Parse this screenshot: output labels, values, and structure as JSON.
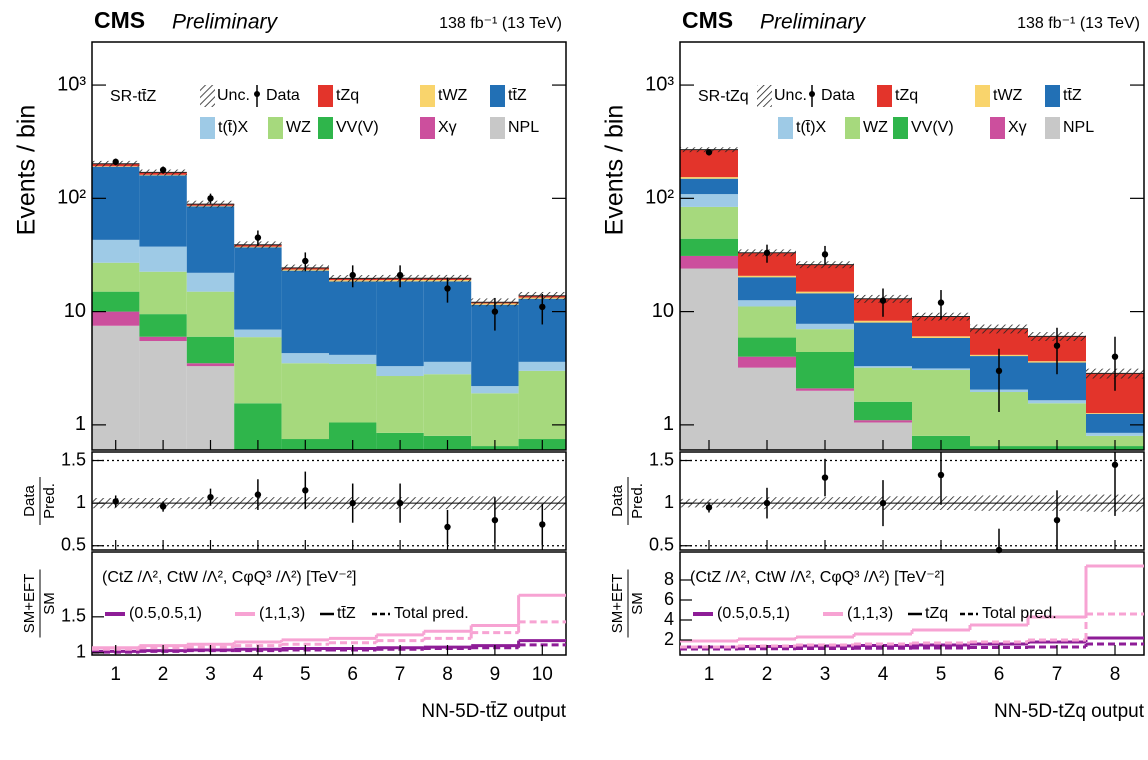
{
  "chart_data": [
    {
      "type": "bar",
      "stacked": true,
      "log_scale": true,
      "title": "CMS",
      "subtitle": "Preliminary",
      "lumi": "138 fb⁻¹ (13 TeV)",
      "region": "SR-tt̄Z",
      "ylabel": "Events / bin",
      "xlabel": "NN-5D-tt̄Z output",
      "categories": [
        "1",
        "2",
        "3",
        "4",
        "5",
        "6",
        "7",
        "8",
        "9",
        "10"
      ],
      "ylim": [
        0.6,
        2400
      ],
      "yticks": [
        1,
        10,
        {
          "value": 100,
          "label": "10²"
        },
        {
          "value": 1000,
          "label": "10³"
        }
      ],
      "uncertainty_name": "Unc.",
      "uncertainty": [
        0.06,
        0.06,
        0.07,
        0.07,
        0.07,
        0.07,
        0.07,
        0.07,
        0.08,
        0.08
      ],
      "data": {
        "name": "Data",
        "values": [
          210,
          178,
          100,
          45,
          28,
          21,
          21,
          16,
          10,
          11
        ],
        "errors": [
          14,
          13,
          10,
          7,
          5.3,
          4.6,
          4.6,
          4,
          3.2,
          3.3
        ]
      },
      "series": [
        {
          "name": "tZq",
          "color": "#e3342b",
          "values": [
            10,
            8,
            3,
            1.5,
            0.8,
            0.7,
            0.7,
            0.7,
            0.3,
            0.5
          ]
        },
        {
          "name": "tWZ",
          "color": "#f9d46c",
          "values": [
            2,
            2,
            1,
            0.5,
            0.5,
            0.5,
            0.5,
            0.5,
            0.3,
            0.3
          ]
        },
        {
          "name": "tt̄Z",
          "color": "#2270b5",
          "values": [
            147,
            122,
            63,
            30,
            18.7,
            14.3,
            15.2,
            14.9,
            9.3,
            9.4
          ]
        },
        {
          "name": "t(t̄)X",
          "color": "#9ecae6",
          "values": [
            16,
            15,
            7,
            1,
            0.8,
            0.7,
            0.6,
            0.8,
            0.3,
            0.6
          ]
        },
        {
          "name": "WZ",
          "color": "#a6d97d",
          "values": [
            12,
            13,
            9,
            4.4,
            2.75,
            2.4,
            1.85,
            2,
            1.25,
            2.25
          ]
        },
        {
          "name": "VV(V)",
          "color": "#2fb54b",
          "values": [
            5,
            3.5,
            2.5,
            1,
            0.2,
            0.5,
            0.3,
            0.25,
            0.1,
            0.2
          ]
        },
        {
          "name": "Xγ",
          "color": "#cc4f9d",
          "values": [
            2.5,
            0.5,
            0.2,
            0.05,
            0.05,
            0.05,
            0.05,
            0.05,
            0.05,
            0.05
          ]
        },
        {
          "name": "NPL",
          "color": "#c8c8c8",
          "values": [
            7.5,
            5.5,
            3.3,
            0.5,
            0.5,
            0.5,
            0.5,
            0.5,
            0.5,
            0.5
          ]
        }
      ],
      "ratio": {
        "ylabel_num": "Data",
        "ylabel_den": "Pred.",
        "ylim": [
          0.45,
          1.6
        ],
        "yticks": [
          0.5,
          1,
          1.5
        ],
        "values": [
          1.02,
          0.96,
          1.07,
          1.1,
          1.15,
          1.0,
          1.0,
          0.72,
          0.8,
          0.75
        ],
        "errors": [
          0.07,
          0.06,
          0.1,
          0.18,
          0.22,
          0.23,
          0.23,
          0.2,
          0.27,
          0.24
        ]
      },
      "eft": {
        "ylabel_num": "SM+EFT",
        "ylabel_den": "SM",
        "header": "(CtZ /Λ², CtW /Λ², CφQ³ /Λ²) [TeV⁻²]",
        "ylim": [
          0.97,
          2.4
        ],
        "yticks": [
          1,
          1.5
        ],
        "signal_name": "tt̄Z",
        "total_name": "Total pred.",
        "series": [
          {
            "name": "(0.5,0.5,1)",
            "color": "#8e1d97",
            "values": [
              1.02,
              1.03,
              1.04,
              1.05,
              1.06,
              1.06,
              1.07,
              1.08,
              1.1,
              1.17
            ],
            "total_values": [
              1.01,
              1.02,
              1.03,
              1.03,
              1.04,
              1.04,
              1.05,
              1.06,
              1.07,
              1.11
            ]
          },
          {
            "name": "(1,1,3)",
            "color": "#f7a3d3",
            "values": [
              1.07,
              1.1,
              1.12,
              1.15,
              1.18,
              1.2,
              1.25,
              1.3,
              1.38,
              1.8
            ],
            "total_values": [
              1.05,
              1.07,
              1.08,
              1.1,
              1.12,
              1.14,
              1.17,
              1.2,
              1.28,
              1.43
            ]
          }
        ]
      }
    },
    {
      "type": "bar",
      "stacked": true,
      "log_scale": true,
      "title": "CMS",
      "subtitle": "Preliminary",
      "lumi": "138 fb⁻¹ (13 TeV)",
      "region": "SR-tZq",
      "ylabel": "Events / bin",
      "xlabel": "NN-5D-tZq output",
      "categories": [
        "1",
        "2",
        "3",
        "4",
        "5",
        "6",
        "7",
        "8"
      ],
      "ylim": [
        0.6,
        2400
      ],
      "yticks": [
        1,
        10,
        {
          "value": 100,
          "label": "10²"
        },
        {
          "value": 1000,
          "label": "10³"
        }
      ],
      "uncertainty_name": "Unc.",
      "uncertainty": [
        0.05,
        0.07,
        0.07,
        0.08,
        0.08,
        0.09,
        0.09,
        0.1
      ],
      "data": {
        "name": "Data",
        "values": [
          255,
          33,
          32,
          12.5,
          12,
          3,
          5,
          4
        ],
        "errors": [
          16,
          6,
          6,
          3.5,
          3.5,
          1.7,
          2.2,
          2
        ]
      },
      "series": [
        {
          "name": "tZq",
          "color": "#e3342b",
          "values": [
            115,
            12.4,
            11,
            4.7,
            3.0,
            2.9,
            2.4,
            1.58
          ]
        },
        {
          "name": "tWZ",
          "color": "#f9d46c",
          "values": [
            5,
            0.6,
            0.5,
            0.3,
            0.2,
            0.1,
            0.1,
            0.02
          ]
        },
        {
          "name": "tt̄Z",
          "color": "#2270b5",
          "values": [
            40,
            7.5,
            6.7,
            4.7,
            2.7,
            2.0,
            1.9,
            0.4
          ]
        },
        {
          "name": "t(t̄)X",
          "color": "#9ecae6",
          "values": [
            25,
            1.5,
            0.8,
            0.1,
            0.1,
            0.1,
            0.1,
            0.05
          ]
        },
        {
          "name": "WZ",
          "color": "#a6d97d",
          "values": [
            40,
            5.2,
            2.6,
            1.6,
            2.25,
            1.3,
            0.9,
            0.15
          ]
        },
        {
          "name": "VV(V)",
          "color": "#2fb54b",
          "values": [
            13,
            1.9,
            2.3,
            0.5,
            0.25,
            0.1,
            0.1,
            0.1
          ]
        },
        {
          "name": "Xγ",
          "color": "#cc4f9d",
          "values": [
            7,
            0.8,
            0.1,
            0.05,
            0.05,
            0.05,
            0.05,
            0.05
          ]
        },
        {
          "name": "NPL",
          "color": "#c8c8c8",
          "values": [
            24,
            3.2,
            2.0,
            1.05,
            0.5,
            0.5,
            0.5,
            0.5
          ]
        }
      ],
      "ratio": {
        "ylabel_num": "Data",
        "ylabel_den": "Pred.",
        "ylim": [
          0.45,
          1.6
        ],
        "yticks": [
          0.5,
          1,
          1.5
        ],
        "values": [
          0.95,
          1.0,
          1.3,
          1.0,
          1.33,
          0.45,
          0.8,
          1.45
        ],
        "errors": [
          0.06,
          0.18,
          0.22,
          0.27,
          0.35,
          0.25,
          0.35,
          0.6
        ]
      },
      "eft": {
        "ylabel_num": "SM+EFT",
        "ylabel_den": "SM",
        "header": "(CtZ /Λ², CtW /Λ², CφQ³ /Λ²) [TeV⁻²]",
        "ylim": [
          0.5,
          10.8
        ],
        "yticks": [
          2,
          4,
          6,
          8
        ],
        "signal_name": "tZq",
        "total_name": "Total pred.",
        "series": [
          {
            "name": "(0.5,0.5,1)",
            "color": "#8e1d97",
            "values": [
              1.3,
              1.35,
              1.4,
              1.45,
              1.5,
              1.6,
              1.8,
              2.2
            ],
            "total_values": [
              1.1,
              1.12,
              1.15,
              1.18,
              1.2,
              1.25,
              1.3,
              1.6
            ]
          },
          {
            "name": "(1,1,3)",
            "color": "#f7a3d3",
            "values": [
              1.9,
              2.1,
              2.3,
              2.6,
              3.0,
              3.5,
              4.3,
              9.4
            ],
            "total_values": [
              1.3,
              1.4,
              1.5,
              1.6,
              1.7,
              1.8,
              2.0,
              4.6
            ]
          }
        ]
      }
    }
  ]
}
